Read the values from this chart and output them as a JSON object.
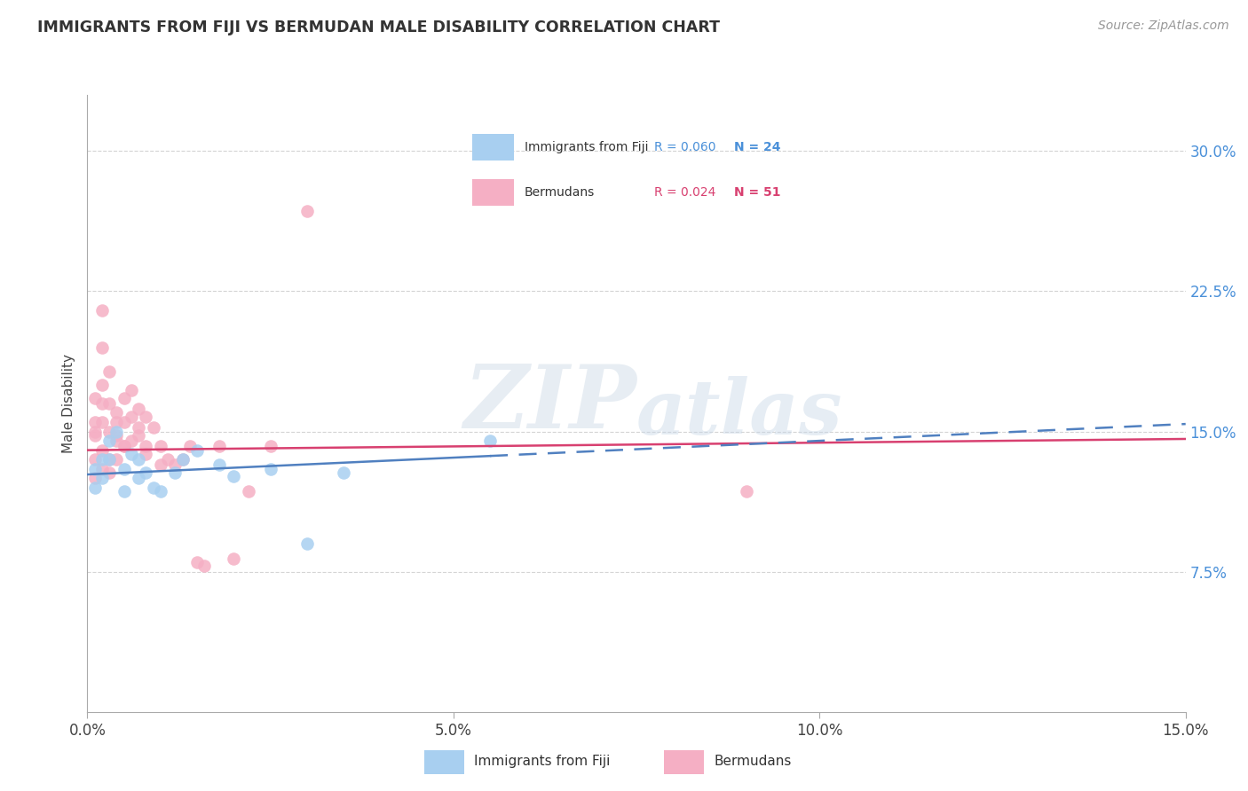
{
  "title": "IMMIGRANTS FROM FIJI VS BERMUDAN MALE DISABILITY CORRELATION CHART",
  "source": "Source: ZipAtlas.com",
  "ylabel": "Male Disability",
  "legend_label1": "Immigrants from Fiji",
  "legend_label2": "Bermudans",
  "R1": 0.06,
  "N1": 24,
  "R2": 0.024,
  "N2": 51,
  "xlim": [
    0.0,
    0.15
  ],
  "ylim": [
    0.0,
    0.33
  ],
  "xticks": [
    0.0,
    0.05,
    0.1,
    0.15
  ],
  "yticks": [
    0.075,
    0.15,
    0.225,
    0.3
  ],
  "xtick_labels": [
    "0.0%",
    "5.0%",
    "10.0%",
    "15.0%"
  ],
  "ytick_labels": [
    "7.5%",
    "15.0%",
    "22.5%",
    "30.0%"
  ],
  "color_fiji": "#a8cff0",
  "color_bermuda": "#f5afc4",
  "trendline_fiji_color": "#5080c0",
  "trendline_bermuda_color": "#d84070",
  "fiji_x": [
    0.001,
    0.001,
    0.002,
    0.002,
    0.003,
    0.003,
    0.004,
    0.005,
    0.005,
    0.006,
    0.007,
    0.007,
    0.008,
    0.009,
    0.01,
    0.012,
    0.013,
    0.015,
    0.018,
    0.02,
    0.025,
    0.03,
    0.035,
    0.055
  ],
  "fiji_y": [
    0.13,
    0.12,
    0.135,
    0.125,
    0.145,
    0.135,
    0.15,
    0.13,
    0.118,
    0.138,
    0.125,
    0.135,
    0.128,
    0.12,
    0.118,
    0.128,
    0.135,
    0.14,
    0.132,
    0.126,
    0.13,
    0.09,
    0.128,
    0.145
  ],
  "bermuda_x": [
    0.001,
    0.001,
    0.001,
    0.001,
    0.001,
    0.001,
    0.002,
    0.002,
    0.002,
    0.002,
    0.002,
    0.002,
    0.002,
    0.003,
    0.003,
    0.003,
    0.003,
    0.003,
    0.004,
    0.004,
    0.004,
    0.004,
    0.004,
    0.005,
    0.005,
    0.005,
    0.005,
    0.006,
    0.006,
    0.006,
    0.007,
    0.007,
    0.007,
    0.008,
    0.008,
    0.008,
    0.009,
    0.01,
    0.01,
    0.011,
    0.012,
    0.013,
    0.014,
    0.015,
    0.016,
    0.018,
    0.02,
    0.022,
    0.025,
    0.03,
    0.09
  ],
  "bermuda_y": [
    0.135,
    0.148,
    0.155,
    0.168,
    0.125,
    0.15,
    0.13,
    0.175,
    0.195,
    0.215,
    0.14,
    0.155,
    0.165,
    0.165,
    0.15,
    0.182,
    0.135,
    0.128,
    0.16,
    0.148,
    0.155,
    0.135,
    0.145,
    0.142,
    0.155,
    0.168,
    0.142,
    0.145,
    0.172,
    0.158,
    0.162,
    0.148,
    0.152,
    0.138,
    0.158,
    0.142,
    0.152,
    0.142,
    0.132,
    0.135,
    0.132,
    0.135,
    0.142,
    0.08,
    0.078,
    0.142,
    0.082,
    0.118,
    0.142,
    0.268,
    0.118
  ],
  "watermark_zip": "ZIP",
  "watermark_atlas": "atlas",
  "background_color": "#ffffff",
  "grid_color": "#d0d0d0"
}
